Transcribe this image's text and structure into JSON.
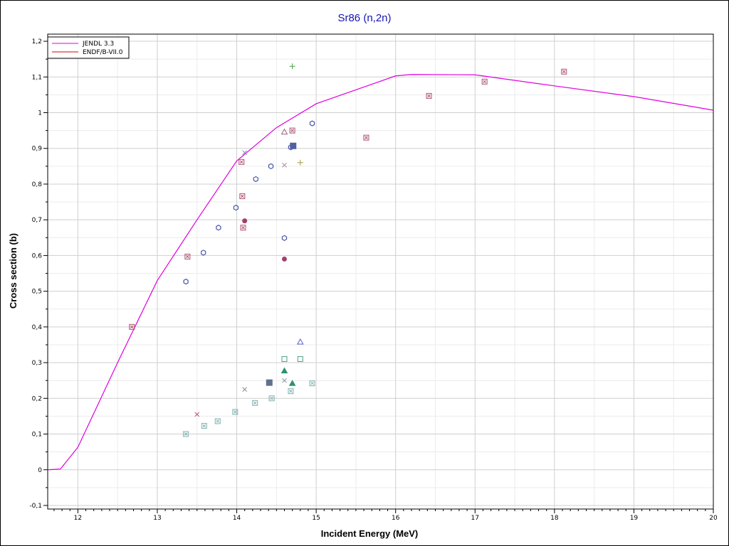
{
  "chart_data": {
    "type": "line",
    "title": "Sr86 (n,2n)",
    "xlabel": "Incident Energy (MeV)",
    "ylabel": "Cross section (b)",
    "xlim": [
      11.62,
      20.0
    ],
    "ylim": [
      -0.11,
      1.22
    ],
    "grid": true,
    "legend_position": "top-left",
    "x_ticks": [
      12,
      13,
      14,
      15,
      16,
      17,
      18,
      19,
      20
    ],
    "x_tick_labels": [
      "12",
      "13",
      "14",
      "15",
      "16",
      "17",
      "18",
      "19",
      "20"
    ],
    "y_ticks": [
      -0.1,
      0,
      0.1,
      0.2,
      0.3,
      0.4,
      0.5,
      0.6,
      0.7,
      0.8,
      0.9,
      1.0,
      1.1,
      1.2
    ],
    "y_tick_labels": [
      "-0,1",
      "0",
      "0,1",
      "0,2",
      "0,3",
      "0,4",
      "0,5",
      "0,6",
      "0,7",
      "0,8",
      "0,9",
      "1",
      "1,1",
      "1,2"
    ],
    "series": [
      {
        "name": "JENDL 3.3",
        "color": "#e000e0",
        "x": [
          11.62,
          11.78,
          12.0,
          12.5,
          13.0,
          13.5,
          14.0,
          14.5,
          15.0,
          16.0,
          16.2,
          17.0,
          18.0,
          19.0,
          20.0
        ],
        "y": [
          0.0,
          0.002,
          0.063,
          0.3,
          0.53,
          0.7,
          0.865,
          0.958,
          1.025,
          1.103,
          1.107,
          1.106,
          1.075,
          1.045,
          1.007
        ]
      },
      {
        "name": "ENDF/B-VII.0",
        "color": "#e00000",
        "x": [],
        "y": []
      }
    ],
    "markers": [
      {
        "x": 12.68,
        "y": 0.4,
        "symbol": "boxx",
        "color": "#b05070"
      },
      {
        "x": 13.38,
        "y": 0.597,
        "symbol": "boxx",
        "color": "#b05070"
      },
      {
        "x": 14.07,
        "y": 0.766,
        "symbol": "boxx",
        "color": "#b05070"
      },
      {
        "x": 14.08,
        "y": 0.678,
        "symbol": "boxx",
        "color": "#b05070"
      },
      {
        "x": 14.06,
        "y": 0.862,
        "symbol": "boxx",
        "color": "#b05070"
      },
      {
        "x": 14.7,
        "y": 0.95,
        "symbol": "boxx",
        "color": "#b05070"
      },
      {
        "x": 15.63,
        "y": 0.93,
        "symbol": "boxx",
        "color": "#b05070"
      },
      {
        "x": 16.42,
        "y": 1.047,
        "symbol": "boxx",
        "color": "#b05070"
      },
      {
        "x": 17.12,
        "y": 1.087,
        "symbol": "boxx",
        "color": "#b05070"
      },
      {
        "x": 18.12,
        "y": 1.115,
        "symbol": "boxx",
        "color": "#b05070"
      },
      {
        "x": 13.36,
        "y": 0.527,
        "symbol": "hexagon",
        "color": "#4a5aa8"
      },
      {
        "x": 13.58,
        "y": 0.608,
        "symbol": "hexagon",
        "color": "#4a5aa8"
      },
      {
        "x": 13.77,
        "y": 0.678,
        "symbol": "hexagon",
        "color": "#4a5aa8"
      },
      {
        "x": 13.99,
        "y": 0.734,
        "symbol": "hexagon",
        "color": "#4a5aa8"
      },
      {
        "x": 14.24,
        "y": 0.814,
        "symbol": "hexagon",
        "color": "#4a5aa8"
      },
      {
        "x": 14.43,
        "y": 0.85,
        "symbol": "hexagon",
        "color": "#4a5aa8"
      },
      {
        "x": 14.68,
        "y": 0.903,
        "symbol": "hexagon",
        "color": "#4a5aa8"
      },
      {
        "x": 14.95,
        "y": 0.97,
        "symbol": "hexagon",
        "color": "#4a5aa8"
      },
      {
        "x": 14.6,
        "y": 0.649,
        "symbol": "hexagon",
        "color": "#4a5aa8"
      },
      {
        "x": 14.71,
        "y": 0.907,
        "symbol": "square-filled",
        "color": "#5060a0"
      },
      {
        "x": 14.1,
        "y": 0.697,
        "symbol": "circle-filled",
        "color": "#a0406a"
      },
      {
        "x": 14.6,
        "y": 0.59,
        "symbol": "circle-filled",
        "color": "#a0406a"
      },
      {
        "x": 14.6,
        "y": 0.946,
        "symbol": "triangle",
        "color": "#a06080"
      },
      {
        "x": 14.1,
        "y": 0.888,
        "symbol": "x",
        "color": "#8090b0"
      },
      {
        "x": 14.6,
        "y": 0.853,
        "symbol": "x",
        "color": "#b08090"
      },
      {
        "x": 14.7,
        "y": 1.13,
        "symbol": "plus",
        "color": "#40a040"
      },
      {
        "x": 14.8,
        "y": 0.86,
        "symbol": "plus",
        "color": "#a0a040"
      },
      {
        "x": 14.8,
        "y": 0.358,
        "symbol": "triangle",
        "color": "#6060d0"
      },
      {
        "x": 14.6,
        "y": 0.31,
        "symbol": "square",
        "color": "#50a080"
      },
      {
        "x": 14.8,
        "y": 0.31,
        "symbol": "square",
        "color": "#50a080"
      },
      {
        "x": 14.6,
        "y": 0.277,
        "symbol": "triangle-filled",
        "color": "#309070"
      },
      {
        "x": 14.7,
        "y": 0.242,
        "symbol": "triangle-filled",
        "color": "#309070"
      },
      {
        "x": 14.41,
        "y": 0.244,
        "symbol": "square-filled",
        "color": "#607090"
      },
      {
        "x": 14.1,
        "y": 0.225,
        "symbol": "x",
        "color": "#8090a0"
      },
      {
        "x": 14.6,
        "y": 0.25,
        "symbol": "x",
        "color": "#8090a0"
      },
      {
        "x": 13.5,
        "y": 0.155,
        "symbol": "x",
        "color": "#c05070"
      },
      {
        "x": 13.36,
        "y": 0.1,
        "symbol": "boxx",
        "color": "#80b0b0"
      },
      {
        "x": 13.59,
        "y": 0.123,
        "symbol": "boxx",
        "color": "#80b0b0"
      },
      {
        "x": 13.76,
        "y": 0.136,
        "symbol": "boxx",
        "color": "#80b0b0"
      },
      {
        "x": 13.98,
        "y": 0.162,
        "symbol": "boxx",
        "color": "#80b0b0"
      },
      {
        "x": 14.23,
        "y": 0.187,
        "symbol": "boxx",
        "color": "#80b0b0"
      },
      {
        "x": 14.44,
        "y": 0.2,
        "symbol": "boxx",
        "color": "#80b0b0"
      },
      {
        "x": 14.68,
        "y": 0.22,
        "symbol": "boxx",
        "color": "#80b0b0"
      },
      {
        "x": 14.95,
        "y": 0.242,
        "symbol": "boxx",
        "color": "#80b0b0"
      }
    ]
  }
}
